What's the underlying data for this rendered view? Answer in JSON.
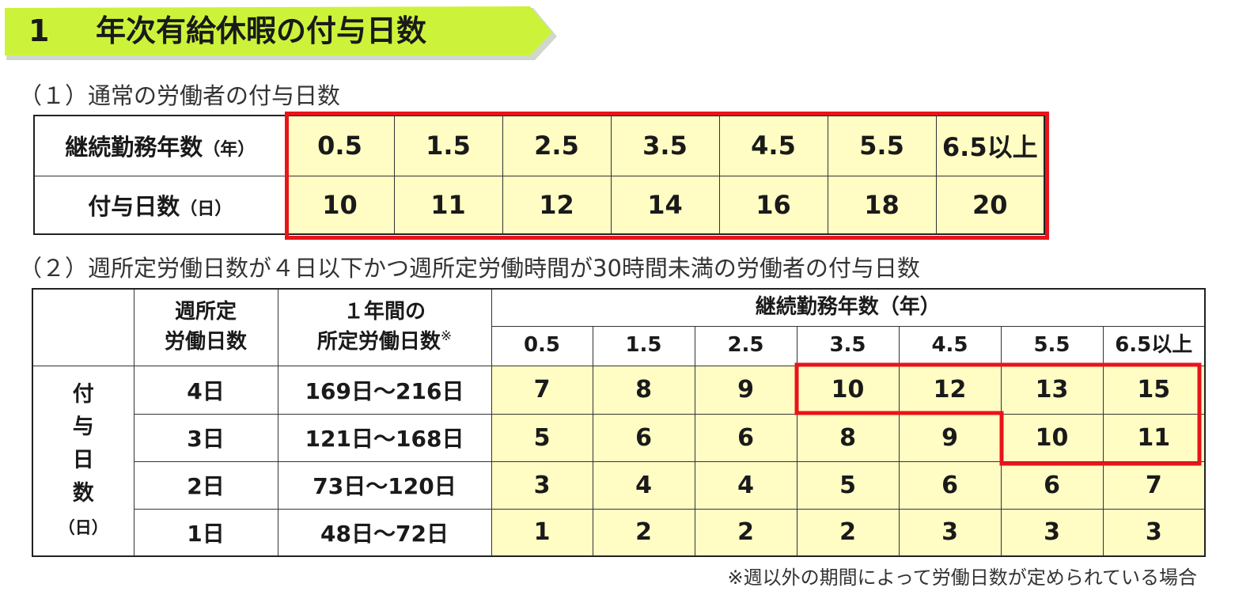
{
  "banner": {
    "number": "1",
    "title": "年次有給休暇の付与日数",
    "color": "#ccf33a"
  },
  "section1": {
    "heading": "（１）通常の労働者の付与日数",
    "row_labels": [
      {
        "main": "継続勤務年数",
        "unit": "（年）"
      },
      {
        "main": "付与日数",
        "unit": "（日）"
      }
    ],
    "years": [
      "0.5",
      "1.5",
      "2.5",
      "3.5",
      "4.5",
      "5.5",
      "6.5以上"
    ],
    "days": [
      "10",
      "11",
      "12",
      "14",
      "16",
      "18",
      "20"
    ]
  },
  "section2": {
    "heading": "（２）週所定労働日数が４日以下かつ週所定労働時間が30時間未満の労働者の付与日数",
    "col_weekly": [
      "週所定",
      "労働日数"
    ],
    "col_annual": [
      "１年間の",
      "所定労働日数"
    ],
    "col_annual_mark": "※",
    "years_header": "継続勤務年数（年）",
    "years": [
      "0.5",
      "1.5",
      "2.5",
      "3.5",
      "4.5",
      "5.5",
      "6.5以上"
    ],
    "side_label": [
      "付",
      "与",
      "日",
      "数"
    ],
    "side_unit": "（日）",
    "rows": [
      {
        "weekly": "4日",
        "annual": "169日～216日",
        "values": [
          "7",
          "8",
          "9",
          "10",
          "12",
          "13",
          "15"
        ]
      },
      {
        "weekly": "3日",
        "annual": "121日～168日",
        "values": [
          "5",
          "6",
          "6",
          "8",
          "9",
          "10",
          "11"
        ]
      },
      {
        "weekly": "2日",
        "annual": "73日～120日",
        "values": [
          "3",
          "4",
          "4",
          "5",
          "6",
          "6",
          "7"
        ]
      },
      {
        "weekly": "1日",
        "annual": "48日～72日",
        "values": [
          "1",
          "2",
          "2",
          "2",
          "3",
          "3",
          "3"
        ]
      }
    ],
    "footnote": "※週以外の期間によって労働日数が定められている場合"
  },
  "colors": {
    "highlight_red": "#e8141a",
    "cell_yellow": "#fffdc4"
  }
}
